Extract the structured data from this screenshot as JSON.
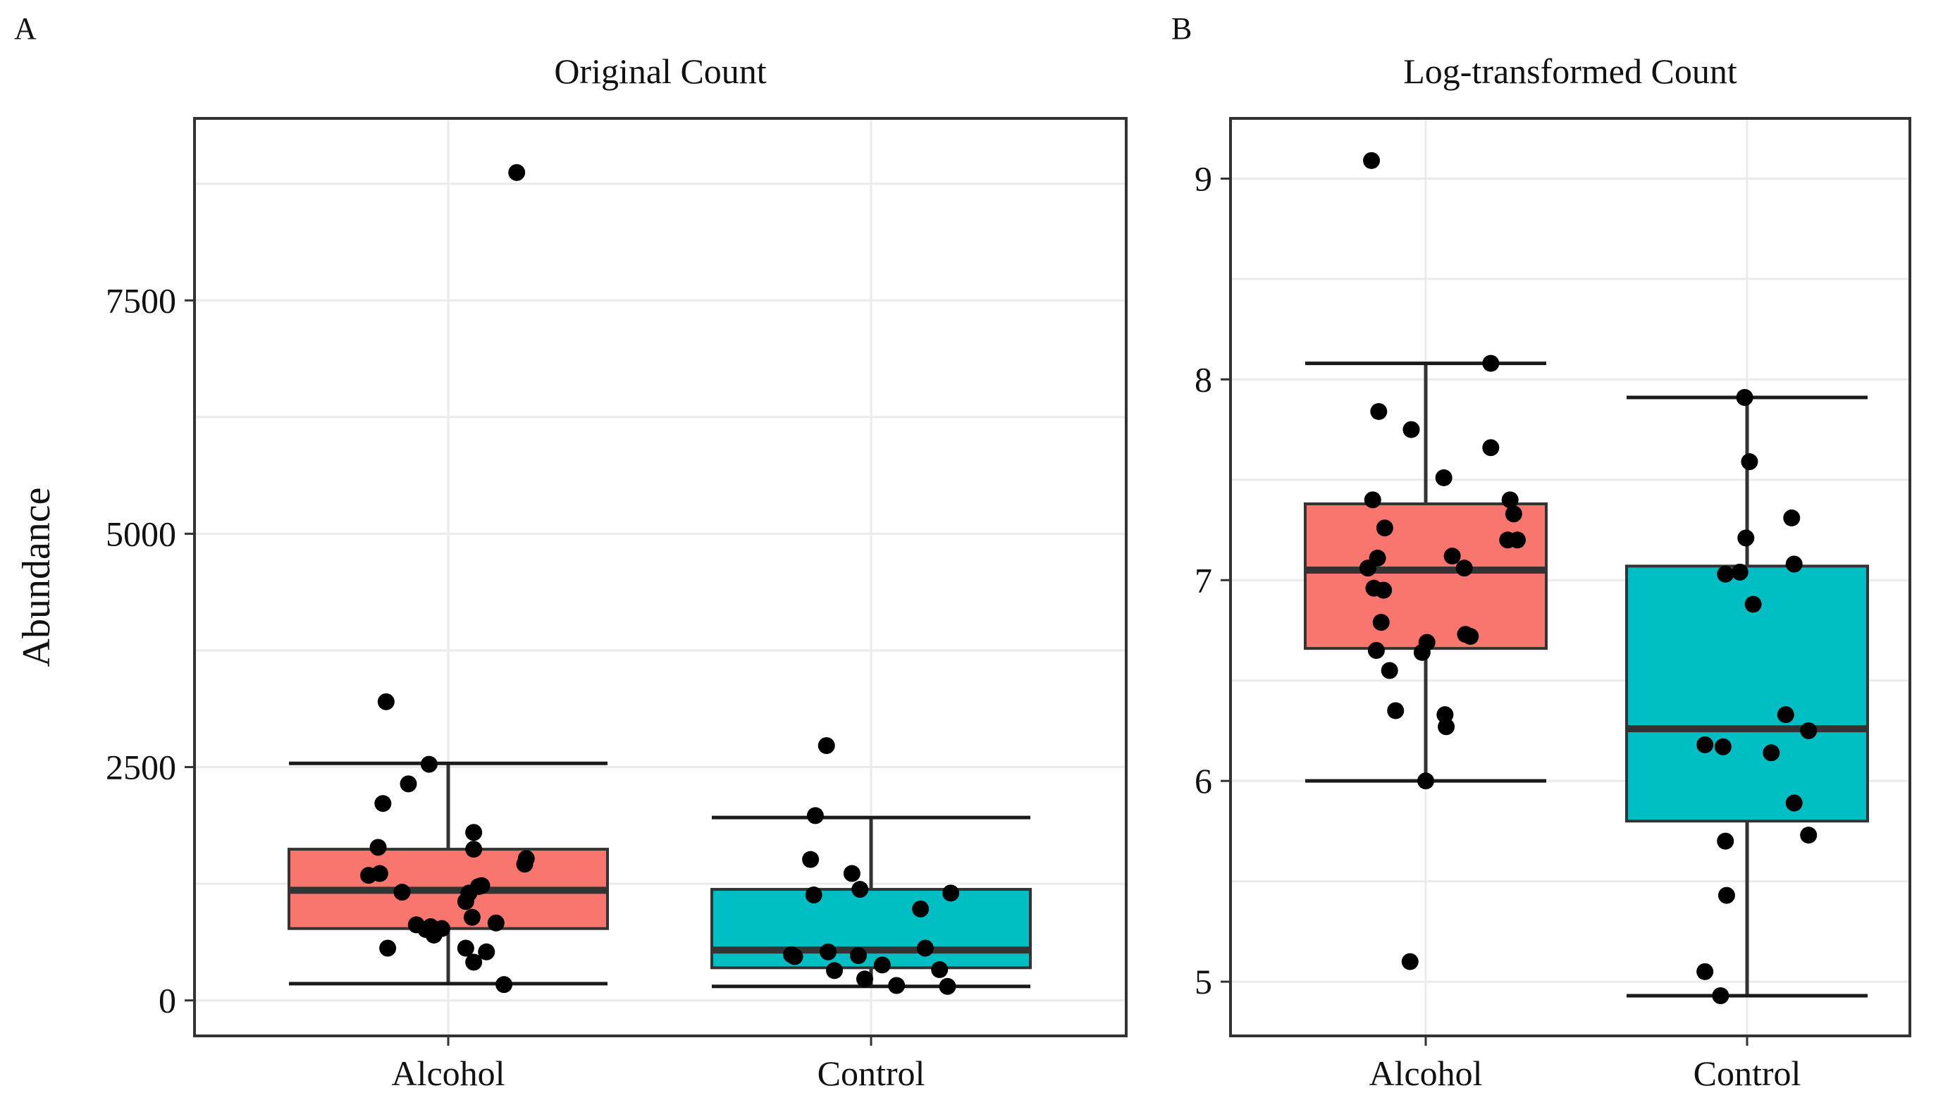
{
  "figure": {
    "background": "#ffffff"
  },
  "chart_data": [
    {
      "type": "boxplot",
      "panel_label": "A",
      "title": "Original Count",
      "ylabel": "Abundance",
      "xlabel": "",
      "ylim": [
        -380,
        9450
      ],
      "yticks": [
        0,
        2500,
        5000,
        7500
      ],
      "ytick_labels": [
        "0",
        "2500",
        "5000",
        "7500"
      ],
      "grid": true,
      "categories": [
        "Alcohol",
        "Control"
      ],
      "groups": [
        {
          "name": "Alcohol",
          "color": "#F8766D",
          "q1": 770,
          "median": 1180,
          "q3": 1620,
          "whisker_low": 180,
          "whisker_high": 2540,
          "points": [
            {
              "jitter": -0.39,
              "value": 3200
            },
            {
              "jitter": -0.25,
              "value": 2320
            },
            {
              "jitter": -0.41,
              "value": 2110
            },
            {
              "jitter": -0.44,
              "value": 1640
            },
            {
              "jitter": -0.5,
              "value": 1340
            },
            {
              "jitter": -0.43,
              "value": 1360
            },
            {
              "jitter": -0.29,
              "value": 1160
            },
            {
              "jitter": -0.2,
              "value": 810
            },
            {
              "jitter": -0.11,
              "value": 790
            },
            {
              "jitter": -0.14,
              "value": 760
            },
            {
              "jitter": -0.09,
              "value": 700
            },
            {
              "jitter": -0.04,
              "value": 770
            },
            {
              "jitter": -0.38,
              "value": 560
            },
            {
              "jitter": -0.12,
              "value": 2530
            },
            {
              "jitter": 0.11,
              "value": 1060
            },
            {
              "jitter": 0.13,
              "value": 1150
            },
            {
              "jitter": 0.15,
              "value": 890
            },
            {
              "jitter": 0.11,
              "value": 560
            },
            {
              "jitter": 0.16,
              "value": 1800
            },
            {
              "jitter": 0.16,
              "value": 1620
            },
            {
              "jitter": 0.19,
              "value": 1220
            },
            {
              "jitter": 0.21,
              "value": 1230
            },
            {
              "jitter": 0.16,
              "value": 410
            },
            {
              "jitter": 0.24,
              "value": 520
            },
            {
              "jitter": 0.3,
              "value": 830
            },
            {
              "jitter": 0.35,
              "value": 170
            },
            {
              "jitter": 0.48,
              "value": 1460
            },
            {
              "jitter": 0.49,
              "value": 1520
            },
            {
              "jitter": 0.43,
              "value": 8870
            }
          ]
        },
        {
          "name": "Control",
          "color": "#00BFC4",
          "q1": 350,
          "median": 540,
          "q3": 1190,
          "whisker_low": 150,
          "whisker_high": 1960,
          "points": [
            {
              "jitter": -0.28,
              "value": 2730
            },
            {
              "jitter": -0.35,
              "value": 1980
            },
            {
              "jitter": -0.38,
              "value": 1510
            },
            {
              "jitter": -0.36,
              "value": 1130
            },
            {
              "jitter": -0.5,
              "value": 490
            },
            {
              "jitter": -0.48,
              "value": 470
            },
            {
              "jitter": -0.27,
              "value": 520
            },
            {
              "jitter": -0.23,
              "value": 320
            },
            {
              "jitter": -0.12,
              "value": 1360
            },
            {
              "jitter": -0.07,
              "value": 1190
            },
            {
              "jitter": -0.08,
              "value": 480
            },
            {
              "jitter": -0.04,
              "value": 230
            },
            {
              "jitter": 0.07,
              "value": 380
            },
            {
              "jitter": 0.16,
              "value": 160
            },
            {
              "jitter": 0.31,
              "value": 980
            },
            {
              "jitter": 0.34,
              "value": 560
            },
            {
              "jitter": 0.43,
              "value": 330
            },
            {
              "jitter": 0.48,
              "value": 150
            },
            {
              "jitter": 0.5,
              "value": 1150
            }
          ]
        }
      ]
    },
    {
      "type": "boxplot",
      "panel_label": "B",
      "title": "Log-transformed Count",
      "ylabel": "",
      "xlabel": "",
      "ylim": [
        4.73,
        9.3
      ],
      "yticks": [
        5,
        6,
        7,
        8,
        9
      ],
      "ytick_labels": [
        "5",
        "6",
        "7",
        "8",
        "9"
      ],
      "grid": true,
      "categories": [
        "Alcohol",
        "Control"
      ],
      "groups": [
        {
          "name": "Alcohol",
          "color": "#F8766D",
          "q1": 6.66,
          "median": 7.05,
          "q3": 7.38,
          "whisker_low": 6.0,
          "whisker_high": 8.08,
          "points": [
            {
              "jitter": -0.45,
              "value": 9.09
            },
            {
              "jitter": -0.39,
              "value": 7.84
            },
            {
              "jitter": -0.44,
              "value": 7.4
            },
            {
              "jitter": -0.34,
              "value": 7.26
            },
            {
              "jitter": -0.4,
              "value": 7.11
            },
            {
              "jitter": -0.48,
              "value": 7.06
            },
            {
              "jitter": -0.43,
              "value": 6.96
            },
            {
              "jitter": -0.35,
              "value": 6.95
            },
            {
              "jitter": -0.37,
              "value": 6.79
            },
            {
              "jitter": -0.41,
              "value": 6.65
            },
            {
              "jitter": -0.3,
              "value": 6.55
            },
            {
              "jitter": -0.25,
              "value": 6.35
            },
            {
              "jitter": -0.12,
              "value": 7.75
            },
            {
              "jitter": -0.03,
              "value": 6.64
            },
            {
              "jitter": 0.01,
              "value": 6.69
            },
            {
              "jitter": 0.0,
              "value": 6.0
            },
            {
              "jitter": -0.13,
              "value": 5.1
            },
            {
              "jitter": 0.15,
              "value": 7.51
            },
            {
              "jitter": 0.22,
              "value": 7.12
            },
            {
              "jitter": 0.16,
              "value": 6.33
            },
            {
              "jitter": 0.17,
              "value": 6.27
            },
            {
              "jitter": 0.32,
              "value": 7.06
            },
            {
              "jitter": 0.33,
              "value": 6.73
            },
            {
              "jitter": 0.37,
              "value": 6.72
            },
            {
              "jitter": 0.54,
              "value": 8.08
            },
            {
              "jitter": 0.54,
              "value": 7.66
            },
            {
              "jitter": 0.7,
              "value": 7.4
            },
            {
              "jitter": 0.73,
              "value": 7.33
            },
            {
              "jitter": 0.68,
              "value": 7.2
            },
            {
              "jitter": 0.76,
              "value": 7.2
            }
          ]
        },
        {
          "name": "Control",
          "color": "#00BFC4",
          "q1": 5.8,
          "median": 6.26,
          "q3": 7.07,
          "whisker_low": 4.93,
          "whisker_high": 7.91,
          "points": [
            {
              "jitter": -0.35,
              "value": 5.05
            },
            {
              "jitter": -0.35,
              "value": 6.18
            },
            {
              "jitter": -0.18,
              "value": 7.03
            },
            {
              "jitter": -0.18,
              "value": 5.7
            },
            {
              "jitter": -0.22,
              "value": 4.93
            },
            {
              "jitter": -0.2,
              "value": 6.17
            },
            {
              "jitter": -0.17,
              "value": 5.43
            },
            {
              "jitter": -0.02,
              "value": 7.91
            },
            {
              "jitter": -0.06,
              "value": 7.04
            },
            {
              "jitter": 0.02,
              "value": 7.59
            },
            {
              "jitter": 0.05,
              "value": 6.88
            },
            {
              "jitter": -0.01,
              "value": 7.21
            },
            {
              "jitter": 0.2,
              "value": 6.14
            },
            {
              "jitter": 0.32,
              "value": 6.33
            },
            {
              "jitter": 0.37,
              "value": 7.31
            },
            {
              "jitter": 0.39,
              "value": 7.08
            },
            {
              "jitter": 0.39,
              "value": 5.89
            },
            {
              "jitter": 0.51,
              "value": 6.25
            },
            {
              "jitter": 0.51,
              "value": 5.73
            }
          ]
        }
      ]
    }
  ]
}
